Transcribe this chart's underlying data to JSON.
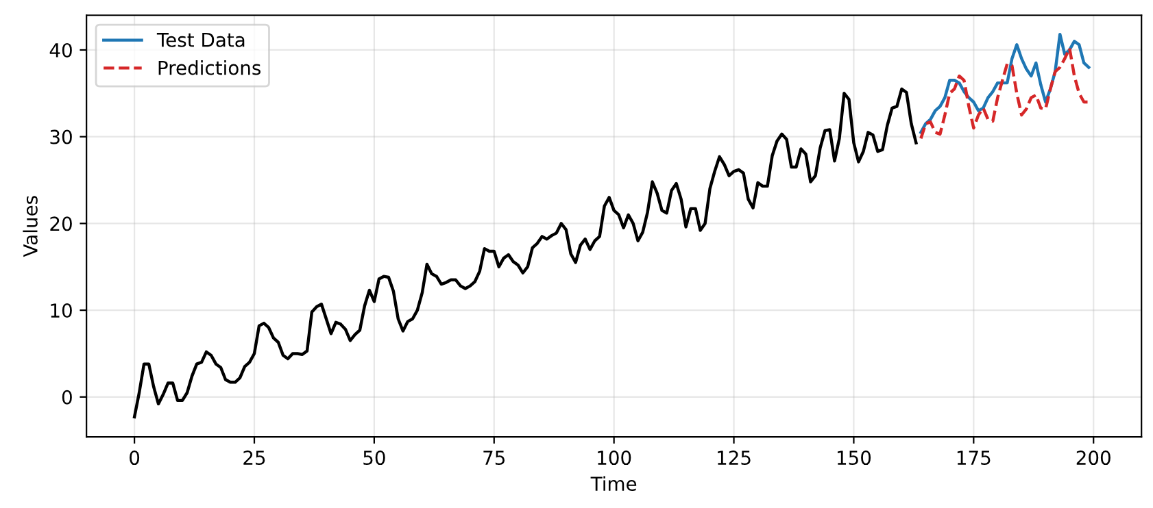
{
  "chart_data": {
    "type": "line",
    "xlabel": "Time",
    "ylabel": "Values",
    "xlim": [
      -10,
      210
    ],
    "ylim": [
      -4.6,
      44
    ],
    "xticks": [
      0,
      25,
      50,
      75,
      100,
      125,
      150,
      175,
      200
    ],
    "yticks": [
      0,
      10,
      20,
      30,
      40
    ],
    "grid": true,
    "legend": "top left",
    "marker": "none",
    "series": [
      {
        "color": "#000000",
        "line_style": "solid",
        "x": [
          0,
          1,
          2,
          3,
          4,
          5,
          6,
          7,
          8,
          9,
          10,
          11,
          12,
          13,
          14,
          15,
          16,
          17,
          18,
          19,
          20,
          21,
          22,
          23,
          24,
          25,
          26,
          27,
          28,
          29,
          30,
          31,
          32,
          33,
          34,
          35,
          36,
          37,
          38,
          39,
          40,
          41,
          42,
          43,
          44,
          45,
          46,
          47,
          48,
          49,
          50,
          51,
          52,
          53,
          54,
          55,
          56,
          57,
          58,
          59,
          60,
          61,
          62,
          63,
          64,
          65,
          66,
          67,
          68,
          69,
          70,
          71,
          72,
          73,
          74,
          75,
          76,
          77,
          78,
          79,
          80,
          81,
          82,
          83,
          84,
          85,
          86,
          87,
          88,
          89,
          90,
          91,
          92,
          93,
          94,
          95,
          96,
          97,
          98,
          99,
          100,
          101,
          102,
          103,
          104,
          105,
          106,
          107,
          108,
          109,
          110,
          111,
          112,
          113,
          114,
          115,
          116,
          117,
          118,
          119,
          120,
          121,
          122,
          123,
          124,
          125,
          126,
          127,
          128,
          129,
          130,
          131,
          132,
          133,
          134,
          135,
          136,
          137,
          138,
          139,
          140,
          141,
          142,
          143,
          144,
          145,
          146,
          147,
          148,
          149,
          150,
          151,
          152,
          153,
          154,
          155,
          156,
          157,
          158,
          159,
          160,
          161,
          162,
          163
        ],
        "values": [
          -2.3,
          0.5,
          3.8,
          3.8,
          1.2,
          -0.8,
          0.3,
          1.6,
          1.6,
          -0.4,
          -0.4,
          0.5,
          2.4,
          3.8,
          4.0,
          5.2,
          4.8,
          3.8,
          3.4,
          2.0,
          1.7,
          1.7,
          2.2,
          3.5,
          4.0,
          5.0,
          8.2,
          8.5,
          8.0,
          6.8,
          6.3,
          4.8,
          4.4,
          5.0,
          5.0,
          4.9,
          5.3,
          9.8,
          10.4,
          10.7,
          9.0,
          7.3,
          8.6,
          8.4,
          7.8,
          6.5,
          7.2,
          7.7,
          10.5,
          12.3,
          11.0,
          13.6,
          13.9,
          13.8,
          12.2,
          9.0,
          7.6,
          8.7,
          9.0,
          10.0,
          12.0,
          15.3,
          14.2,
          13.9,
          13.0,
          13.2,
          13.5,
          13.5,
          12.8,
          12.5,
          12.8,
          13.3,
          14.5,
          17.1,
          16.8,
          16.8,
          15.0,
          16.0,
          16.4,
          15.6,
          15.2,
          14.3,
          15.0,
          17.2,
          17.7,
          18.5,
          18.2,
          18.6,
          18.9,
          20.0,
          19.3,
          16.5,
          15.5,
          17.5,
          18.2,
          17.0,
          18.0,
          18.5,
          22.0,
          23.0,
          21.5,
          21.0,
          19.5,
          21.0,
          20.0,
          18.0,
          19.0,
          21.3,
          24.8,
          23.5,
          21.5,
          21.2,
          23.8,
          24.6,
          22.8,
          19.6,
          21.7,
          21.7,
          19.2,
          20.0,
          24.0,
          26.0,
          27.7,
          26.8,
          25.5,
          26.0,
          26.2,
          25.8,
          22.8,
          21.8,
          24.7,
          24.3,
          24.3,
          27.8,
          29.5,
          30.3,
          29.7,
          26.5,
          26.5,
          28.6,
          28.0,
          24.8,
          25.5,
          28.7,
          30.7,
          30.8,
          27.2,
          29.8,
          35.0,
          34.3,
          29.3,
          27.1,
          28.3,
          30.5,
          30.2,
          28.3,
          28.5,
          31.3,
          33.3,
          33.5,
          35.5,
          35.1,
          31.5,
          29.3
        ]
      },
      {
        "name": "Test Data",
        "color": "#1f77b4",
        "line_style": "solid",
        "x": [
          164,
          165,
          166,
          167,
          168,
          169,
          170,
          171,
          172,
          173,
          174,
          175,
          176,
          177,
          178,
          179,
          180,
          181,
          182,
          183,
          184,
          185,
          186,
          187,
          188,
          189,
          190,
          191,
          192,
          193,
          194,
          195,
          196,
          197,
          198,
          199
        ],
        "values": [
          30.5,
          31.5,
          32.0,
          33.0,
          33.5,
          34.5,
          36.5,
          36.5,
          36.2,
          35.2,
          34.5,
          34.0,
          33.0,
          33.3,
          34.5,
          35.2,
          36.2,
          36.2,
          36.2,
          39.0,
          40.6,
          39.0,
          37.8,
          37.0,
          38.5,
          36.0,
          34.0,
          35.5,
          37.5,
          41.8,
          39.5,
          40.0,
          41.0,
          40.6,
          38.5,
          38.0
        ]
      },
      {
        "name": "Predictions",
        "color": "#d62728",
        "line_style": "dashed",
        "x": [
          164,
          165,
          166,
          167,
          168,
          169,
          170,
          171,
          172,
          173,
          174,
          175,
          176,
          177,
          178,
          179,
          180,
          181,
          182,
          183,
          184,
          185,
          186,
          187,
          188,
          189,
          190,
          191,
          192,
          193,
          194,
          195,
          196,
          197,
          198,
          199
        ],
        "values": [
          29.8,
          31.5,
          31.7,
          30.5,
          30.3,
          32.5,
          35.0,
          35.5,
          37.0,
          36.5,
          33.5,
          31.0,
          32.5,
          33.3,
          32.0,
          31.8,
          34.5,
          36.5,
          38.4,
          38.2,
          35.0,
          32.5,
          33.2,
          34.5,
          34.8,
          33.3,
          33.2,
          35.5,
          37.5,
          38.0,
          39.0,
          40.2,
          37.0,
          35.0,
          34.0,
          34.0
        ]
      }
    ]
  }
}
